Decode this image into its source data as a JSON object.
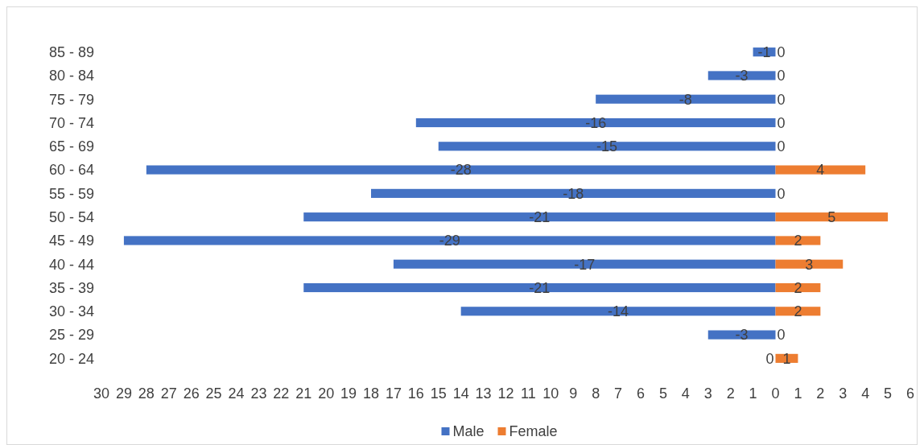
{
  "chart_data": {
    "type": "bar",
    "orientation": "horizontal",
    "data_labels": true,
    "legend": "bottom",
    "categories": [
      "85 - 89",
      "80 - 84",
      "75 - 79",
      "70 - 74",
      "65 - 69",
      "60 - 64",
      "55 - 59",
      "50 - 54",
      "45 - 49",
      "40 - 44",
      "35 - 39",
      "30 - 34",
      "25 - 29",
      "20 - 24"
    ],
    "series": [
      {
        "name": "Male",
        "color": "#4472c4",
        "values": [
          -1,
          -3,
          -8,
          -16,
          -15,
          -28,
          -18,
          -21,
          -29,
          -17,
          -21,
          -14,
          -3,
          0
        ]
      },
      {
        "name": "Female",
        "color": "#ed7d31",
        "values": [
          0,
          0,
          0,
          0,
          0,
          4,
          0,
          5,
          2,
          3,
          2,
          2,
          0,
          1
        ]
      }
    ],
    "xlim": [
      -30,
      6
    ],
    "xticks": [
      {
        "value": -30,
        "label": "30"
      },
      {
        "value": -29,
        "label": "29"
      },
      {
        "value": -28,
        "label": "28"
      },
      {
        "value": -27,
        "label": "27"
      },
      {
        "value": -26,
        "label": "26"
      },
      {
        "value": -25,
        "label": "25"
      },
      {
        "value": -24,
        "label": "24"
      },
      {
        "value": -23,
        "label": "23"
      },
      {
        "value": -22,
        "label": "22"
      },
      {
        "value": -21,
        "label": "21"
      },
      {
        "value": -20,
        "label": "20"
      },
      {
        "value": -19,
        "label": "19"
      },
      {
        "value": -18,
        "label": "18"
      },
      {
        "value": -17,
        "label": "17"
      },
      {
        "value": -16,
        "label": "16"
      },
      {
        "value": -15,
        "label": "15"
      },
      {
        "value": -14,
        "label": "14"
      },
      {
        "value": -13,
        "label": "13"
      },
      {
        "value": -12,
        "label": "12"
      },
      {
        "value": -11,
        "label": "11"
      },
      {
        "value": -10,
        "label": "10"
      },
      {
        "value": -9,
        "label": "9"
      },
      {
        "value": -8,
        "label": "8"
      },
      {
        "value": -7,
        "label": "7"
      },
      {
        "value": -6,
        "label": "6"
      },
      {
        "value": -5,
        "label": "5"
      },
      {
        "value": -4,
        "label": "4"
      },
      {
        "value": -3,
        "label": "3"
      },
      {
        "value": -2,
        "label": "2"
      },
      {
        "value": -1,
        "label": "1"
      },
      0,
      1,
      2,
      3,
      4,
      5,
      6
    ]
  }
}
